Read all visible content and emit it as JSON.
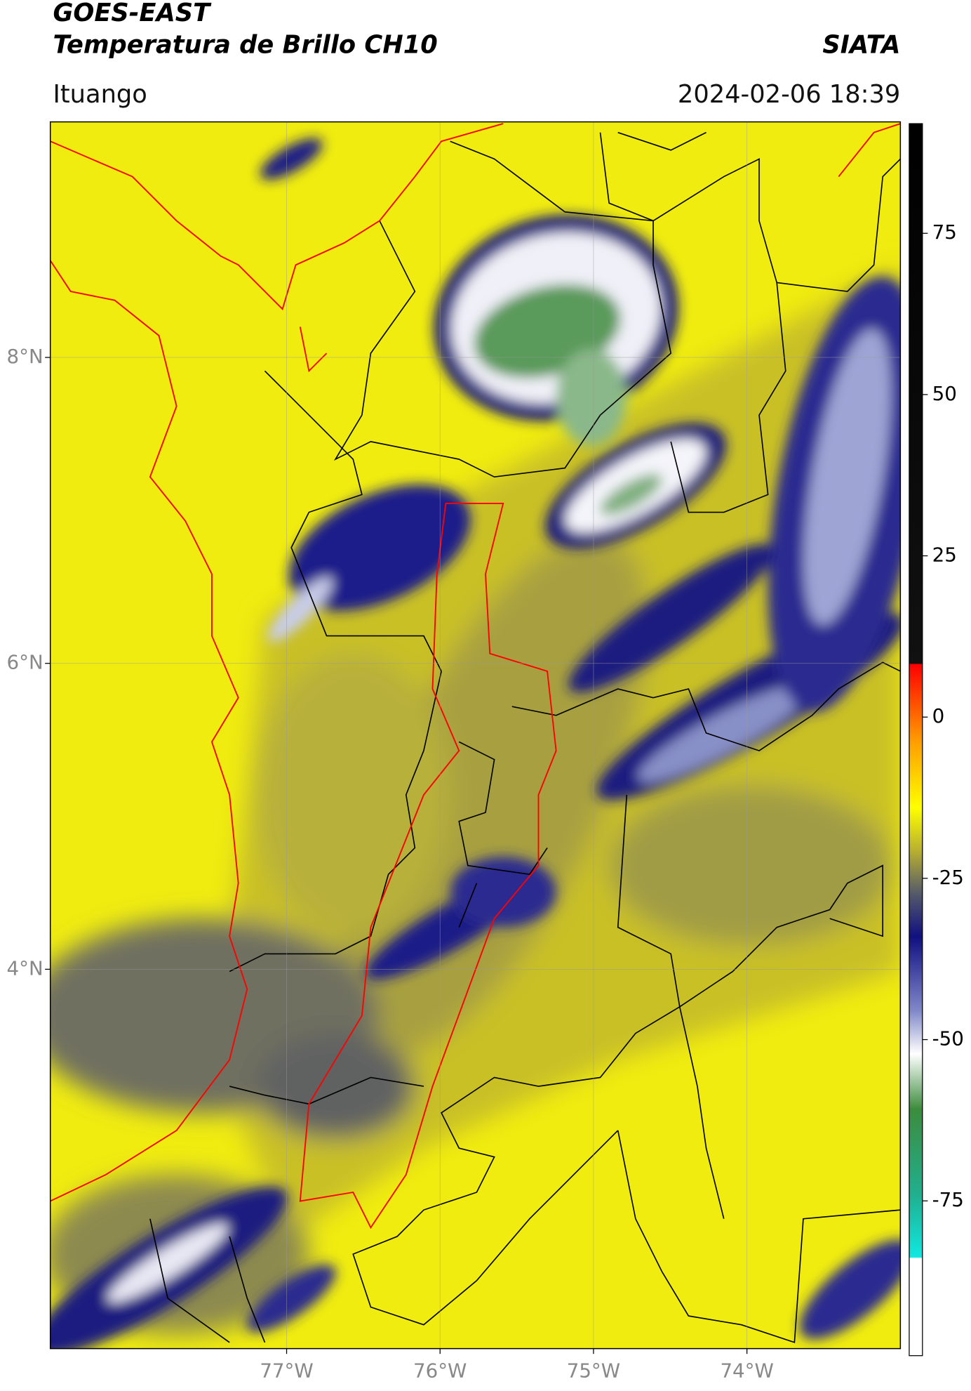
{
  "header": {
    "title": "GOES-EAST",
    "subtitle": "Temperatura de Brillo CH10",
    "brand": "SIATA",
    "location": "Ituango",
    "datetime": "2024-02-06 18:39"
  },
  "map": {
    "lat_lim": [
      1.52,
      9.54
    ],
    "lon_lim": [
      -78.54,
      -73.0
    ],
    "lat_ticks": [
      {
        "value": 8,
        "label": "8°N"
      },
      {
        "value": 6,
        "label": "6°N"
      },
      {
        "value": 4,
        "label": "4°N"
      }
    ],
    "lon_ticks": [
      {
        "value": -77,
        "label": "77°W"
      },
      {
        "value": -76,
        "label": "76°W"
      },
      {
        "value": -75,
        "label": "75°W"
      },
      {
        "value": -74,
        "label": "74°W"
      }
    ]
  },
  "colorbar": {
    "lim": [
      -99,
      92
    ],
    "ticks": [
      75,
      50,
      25,
      0,
      -25,
      -50,
      -75
    ]
  }
}
